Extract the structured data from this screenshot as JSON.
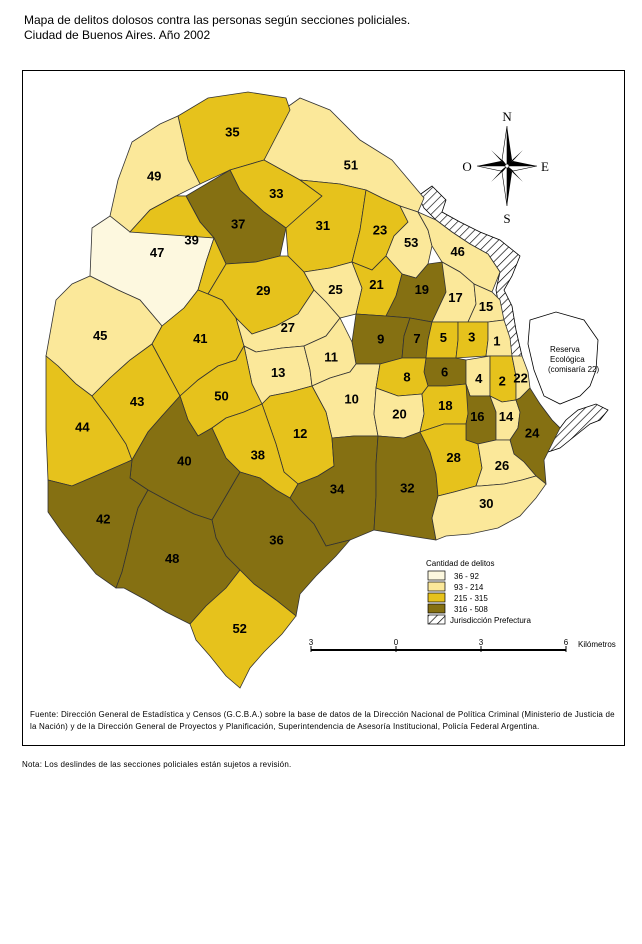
{
  "title": {
    "line1": "Mapa de delitos dolosos contra las personas según secciones policiales.",
    "line2": "Ciudad de Buenos Aires. Año 2002"
  },
  "colors": {
    "c1": "#fdf8df",
    "c2": "#fbe89a",
    "c3": "#e6c21c",
    "c4": "#857012",
    "border": "#333333"
  },
  "legend": {
    "title": "Cantidad de delitos",
    "items": [
      {
        "label": "36 - 92",
        "class": "c1"
      },
      {
        "label": "93 - 214",
        "class": "c2"
      },
      {
        "label": "215 - 315",
        "class": "c3"
      },
      {
        "label": "316 - 508",
        "class": "c4"
      },
      {
        "label": "Jurisdicción Prefectura",
        "class": "hatch"
      }
    ]
  },
  "compass": {
    "n": "N",
    "s": "S",
    "e": "E",
    "o": "O"
  },
  "scale": {
    "ticks": [
      "3",
      "0",
      "3",
      "6"
    ],
    "unit": "Kilómetros"
  },
  "reserva": {
    "line1": "Reserva",
    "line2": "Ecológica",
    "line3": "(comisaría 22)"
  },
  "sections": [
    {
      "id": "1",
      "class": "c2"
    },
    {
      "id": "2",
      "class": "c3"
    },
    {
      "id": "3",
      "class": "c3"
    },
    {
      "id": "4",
      "class": "c2"
    },
    {
      "id": "5",
      "class": "c3"
    },
    {
      "id": "6",
      "class": "c4"
    },
    {
      "id": "7",
      "class": "c4"
    },
    {
      "id": "8",
      "class": "c3"
    },
    {
      "id": "9",
      "class": "c4"
    },
    {
      "id": "10",
      "class": "c2"
    },
    {
      "id": "11",
      "class": "c2"
    },
    {
      "id": "12",
      "class": "c3"
    },
    {
      "id": "13",
      "class": "c2"
    },
    {
      "id": "14",
      "class": "c2"
    },
    {
      "id": "15",
      "class": "c2"
    },
    {
      "id": "16",
      "class": "c4"
    },
    {
      "id": "17",
      "class": "c2"
    },
    {
      "id": "18",
      "class": "c3"
    },
    {
      "id": "19",
      "class": "c4"
    },
    {
      "id": "20",
      "class": "c2"
    },
    {
      "id": "21",
      "class": "c3"
    },
    {
      "id": "22",
      "class": "c2"
    },
    {
      "id": "23",
      "class": "c3"
    },
    {
      "id": "24",
      "class": "c4"
    },
    {
      "id": "25",
      "class": "c2"
    },
    {
      "id": "26",
      "class": "c2"
    },
    {
      "id": "27",
      "class": "c2"
    },
    {
      "id": "28",
      "class": "c3"
    },
    {
      "id": "29",
      "class": "c3"
    },
    {
      "id": "30",
      "class": "c2"
    },
    {
      "id": "31",
      "class": "c3"
    },
    {
      "id": "32",
      "class": "c4"
    },
    {
      "id": "33",
      "class": "c3"
    },
    {
      "id": "34",
      "class": "c4"
    },
    {
      "id": "35",
      "class": "c3"
    },
    {
      "id": "36",
      "class": "c4"
    },
    {
      "id": "37",
      "class": "c4"
    },
    {
      "id": "38",
      "class": "c3"
    },
    {
      "id": "39",
      "class": "c3"
    },
    {
      "id": "40",
      "class": "c4"
    },
    {
      "id": "41",
      "class": "c3"
    },
    {
      "id": "42",
      "class": "c4"
    },
    {
      "id": "43",
      "class": "c3"
    },
    {
      "id": "44",
      "class": "c3"
    },
    {
      "id": "45",
      "class": "c2"
    },
    {
      "id": "46",
      "class": "c2"
    },
    {
      "id": "47",
      "class": "c1"
    },
    {
      "id": "48",
      "class": "c4"
    },
    {
      "id": "49",
      "class": "c2"
    },
    {
      "id": "50",
      "class": "c3"
    },
    {
      "id": "51",
      "class": "c2"
    },
    {
      "id": "52",
      "class": "c3"
    },
    {
      "id": "53",
      "class": "c2"
    }
  ],
  "source": "Fuente: Dirección General de Estadística y Censos (G.C.B.A.) sobre la base de datos de la Dirección Nacional de Política Criminal (Ministerio de Justicia de la Nación) y de la Dirección General de Proyectos y Planificación, Superintendencia de Asesoría Institucional, Policía Federal Argentina.",
  "note": "Nota: Los deslindes de las secciones policiales están sujetos a revisión."
}
